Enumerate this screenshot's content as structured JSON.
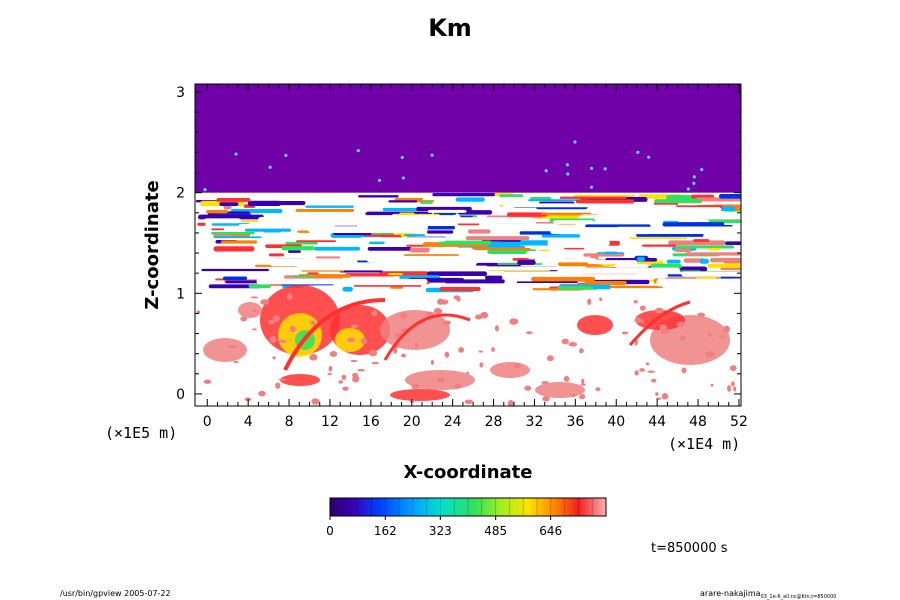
{
  "chart_data": {
    "type": "heatmap",
    "title": "Km",
    "xlabel": "X-coordinate",
    "ylabel": "Z-coordinate",
    "x_multiplier": "(×1E4 m)",
    "y_multiplier": "(×1E5 m)",
    "xlim": [
      -1.2,
      52.2
    ],
    "ylim": [
      -0.12,
      3.08
    ],
    "x_ticks": [
      "0",
      "4",
      "8",
      "12",
      "16",
      "20",
      "24",
      "28",
      "32",
      "36",
      "40",
      "44",
      "48",
      "52"
    ],
    "y_ticks": [
      "0",
      "1",
      "2",
      "3"
    ],
    "colorbar": {
      "min": 0,
      "max": 808,
      "tick_labels": [
        "0",
        "162",
        "323",
        "485",
        "646"
      ],
      "tick_values": [
        0,
        162,
        323,
        485,
        646
      ]
    },
    "time_label": "t=850000 s",
    "regions": {
      "upper_layer": {
        "z_range": [
          2.0,
          3.08
        ],
        "value": 0,
        "description_color": "#7000a8"
      },
      "turbulent_band": {
        "z_range": [
          1.05,
          2.0
        ]
      },
      "lower_plumes": {
        "z_range": [
          -0.12,
          1.0
        ]
      }
    }
  },
  "footer": {
    "left": "/usr/bin/gpview 2005-07-22",
    "right": "arare-nakajima",
    "right_sub": "03_1e-6_all.nc@Km,t=850000"
  }
}
